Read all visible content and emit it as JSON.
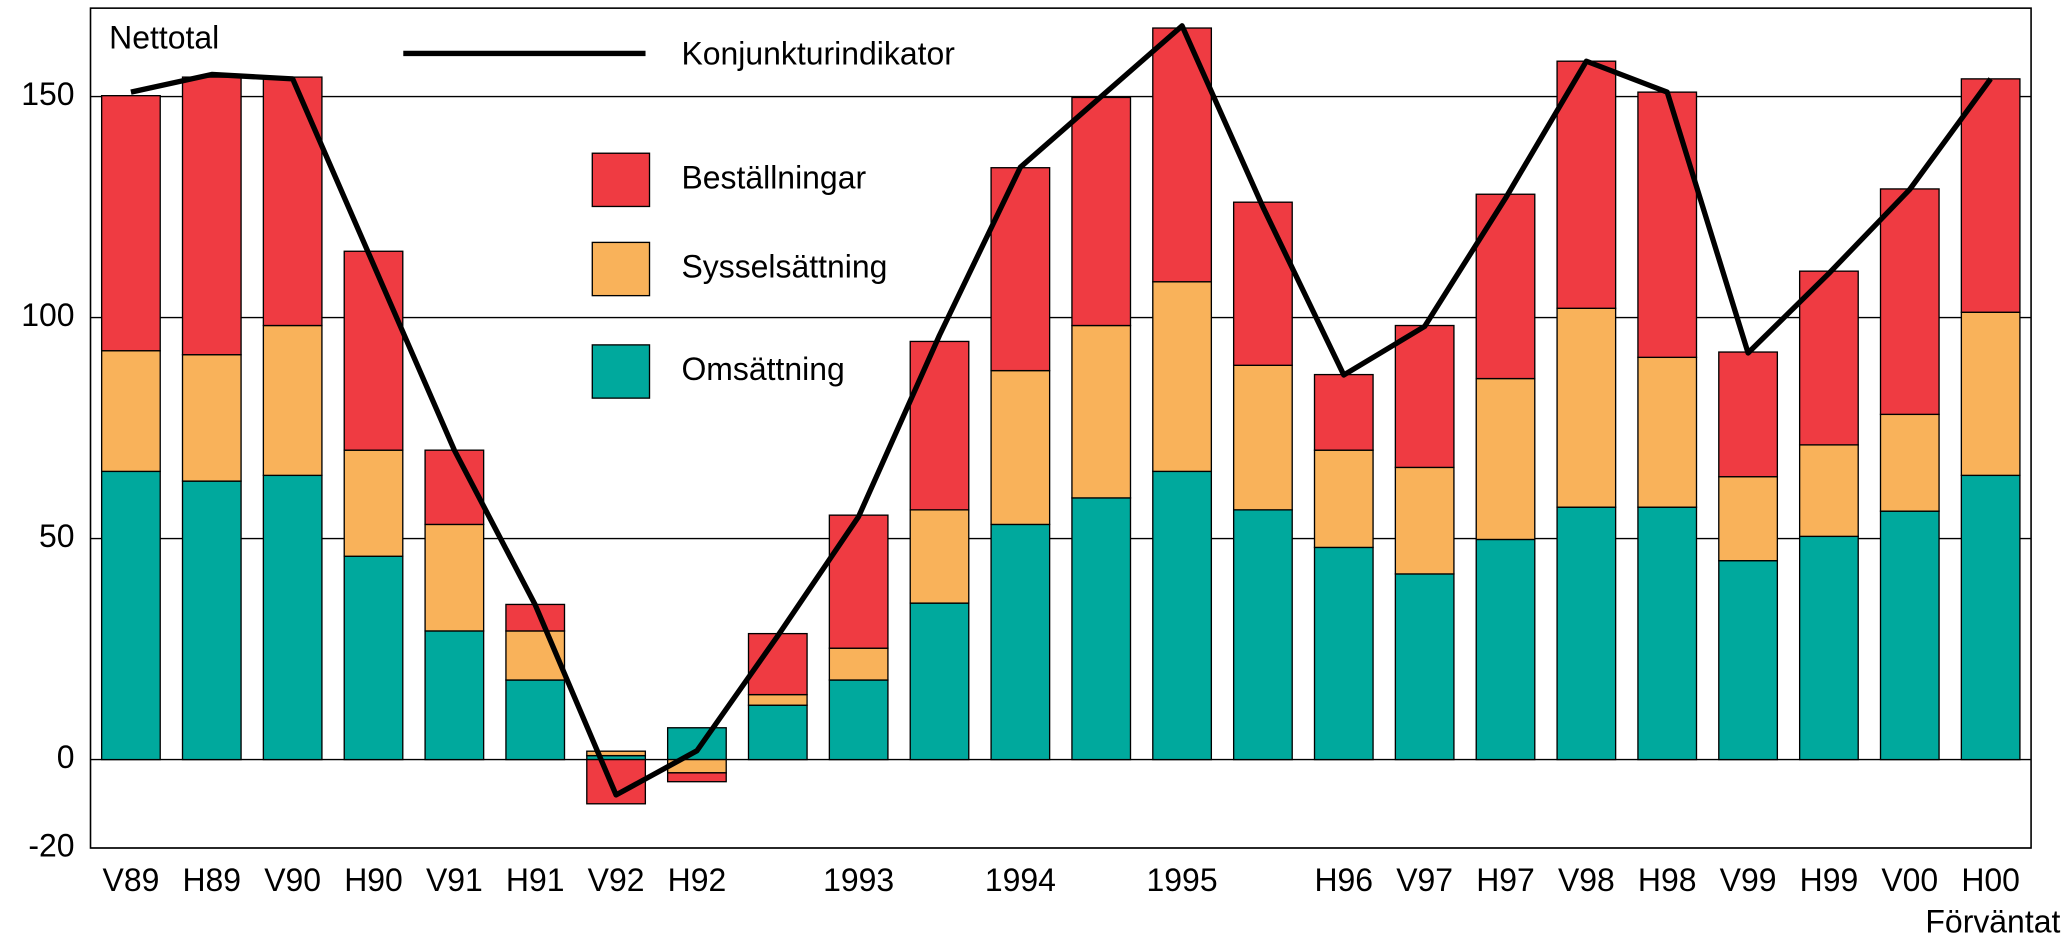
{
  "chart_data": {
    "type": "bar",
    "stacked": true,
    "annotations": [
      "Nettotal",
      "Förväntat"
    ],
    "categories": [
      "V89",
      "H89",
      "V90",
      "H90",
      "V91",
      "H91",
      "V92",
      "H92",
      null,
      "1993",
      null,
      "1994",
      null,
      "1995",
      null,
      "H96",
      "V97",
      "H97",
      "V98",
      "H98",
      "V99",
      "H99",
      "V00",
      "H00"
    ],
    "series": [
      {
        "name": "Omsättning",
        "color": "#00a99d",
        "values": [
          65.2,
          63,
          64.3,
          46,
          29.1,
          18,
          0.9,
          7.2,
          12.3,
          18,
          35.4,
          53.2,
          59.2,
          65.2,
          56.5,
          48,
          42,
          49.8,
          57.1,
          57.1,
          45,
          50.5,
          56.2,
          64.3
        ]
      },
      {
        "name": "Sysselsättning",
        "color": "#f9b25a",
        "values": [
          27.3,
          28.6,
          33.9,
          24,
          24.1,
          11.1,
          1,
          -3,
          2.4,
          7.2,
          21.1,
          34.8,
          39,
          42.9,
          32.7,
          22,
          24.1,
          36.4,
          45,
          33.9,
          19,
          20.7,
          21.9,
          36.9
        ]
      },
      {
        "name": "Beställningar",
        "color": "#ef3b42",
        "values": [
          57.7,
          62.8,
          56.2,
          45,
          16.8,
          6,
          -10,
          -2,
          13.8,
          30.1,
          38.1,
          45.9,
          51.6,
          57.4,
          36.9,
          17.1,
          32.1,
          41.7,
          55.9,
          60,
          28.2,
          39.3,
          51,
          52.8
        ]
      }
    ],
    "line": {
      "name": "Konjunkturindikator",
      "color": "#000000",
      "values": [
        151,
        155,
        154,
        112,
        70,
        35,
        -8,
        2,
        28,
        55,
        96,
        134,
        150,
        166,
        125,
        87,
        98,
        127,
        158,
        151,
        92,
        110,
        129,
        154
      ]
    },
    "ylim": [
      -20,
      170
    ],
    "yticks": [
      -20,
      0,
      50,
      100,
      150
    ],
    "grid": true
  }
}
